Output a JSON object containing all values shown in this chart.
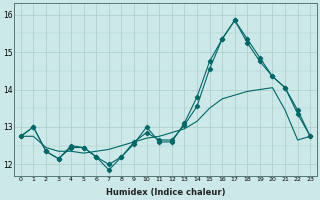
{
  "title": "",
  "xlabel": "Humidex (Indice chaleur)",
  "ylabel": "",
  "bg_color": "#cce8e8",
  "line_color": "#006666",
  "grid_color": "#aacccc",
  "xlim": [
    -0.5,
    23.5
  ],
  "ylim": [
    11.7,
    16.3
  ],
  "yticks": [
    12,
    13,
    14,
    15,
    16
  ],
  "xticks": [
    0,
    1,
    2,
    3,
    4,
    5,
    6,
    7,
    8,
    9,
    10,
    11,
    12,
    13,
    14,
    15,
    16,
    17,
    18,
    19,
    20,
    21,
    22,
    23
  ],
  "series1_x": [
    0,
    1,
    2,
    3,
    4,
    5,
    6,
    7,
    8,
    9,
    10,
    11,
    12,
    13,
    14,
    15,
    16,
    17,
    18,
    19,
    20,
    21,
    22,
    23
  ],
  "series1_y": [
    12.75,
    13.0,
    12.35,
    12.15,
    12.5,
    12.45,
    12.2,
    11.85,
    12.2,
    12.55,
    13.0,
    12.6,
    12.6,
    13.1,
    13.8,
    14.75,
    15.35,
    15.85,
    15.35,
    14.85,
    14.35,
    14.05,
    13.45,
    12.75
  ],
  "series2_x": [
    0,
    1,
    2,
    3,
    4,
    5,
    6,
    7,
    8,
    9,
    10,
    11,
    12,
    13,
    14,
    15,
    16,
    17,
    18,
    19,
    20,
    21,
    22,
    23
  ],
  "series2_y": [
    12.75,
    13.0,
    12.35,
    12.15,
    12.45,
    12.45,
    12.2,
    12.0,
    12.2,
    12.6,
    12.85,
    12.65,
    12.65,
    13.05,
    13.55,
    14.55,
    15.35,
    15.85,
    15.25,
    14.75,
    14.35,
    14.05,
    13.35,
    12.75
  ],
  "series3_x": [
    0,
    1,
    2,
    3,
    4,
    5,
    6,
    7,
    8,
    9,
    10,
    11,
    12,
    13,
    14,
    15,
    16,
    17,
    18,
    19,
    20,
    21,
    22,
    23
  ],
  "series3_y": [
    12.75,
    12.75,
    12.45,
    12.35,
    12.35,
    12.3,
    12.35,
    12.4,
    12.5,
    12.6,
    12.7,
    12.75,
    12.85,
    12.95,
    13.15,
    13.5,
    13.75,
    13.85,
    13.95,
    14.0,
    14.05,
    13.45,
    12.65,
    12.75
  ]
}
